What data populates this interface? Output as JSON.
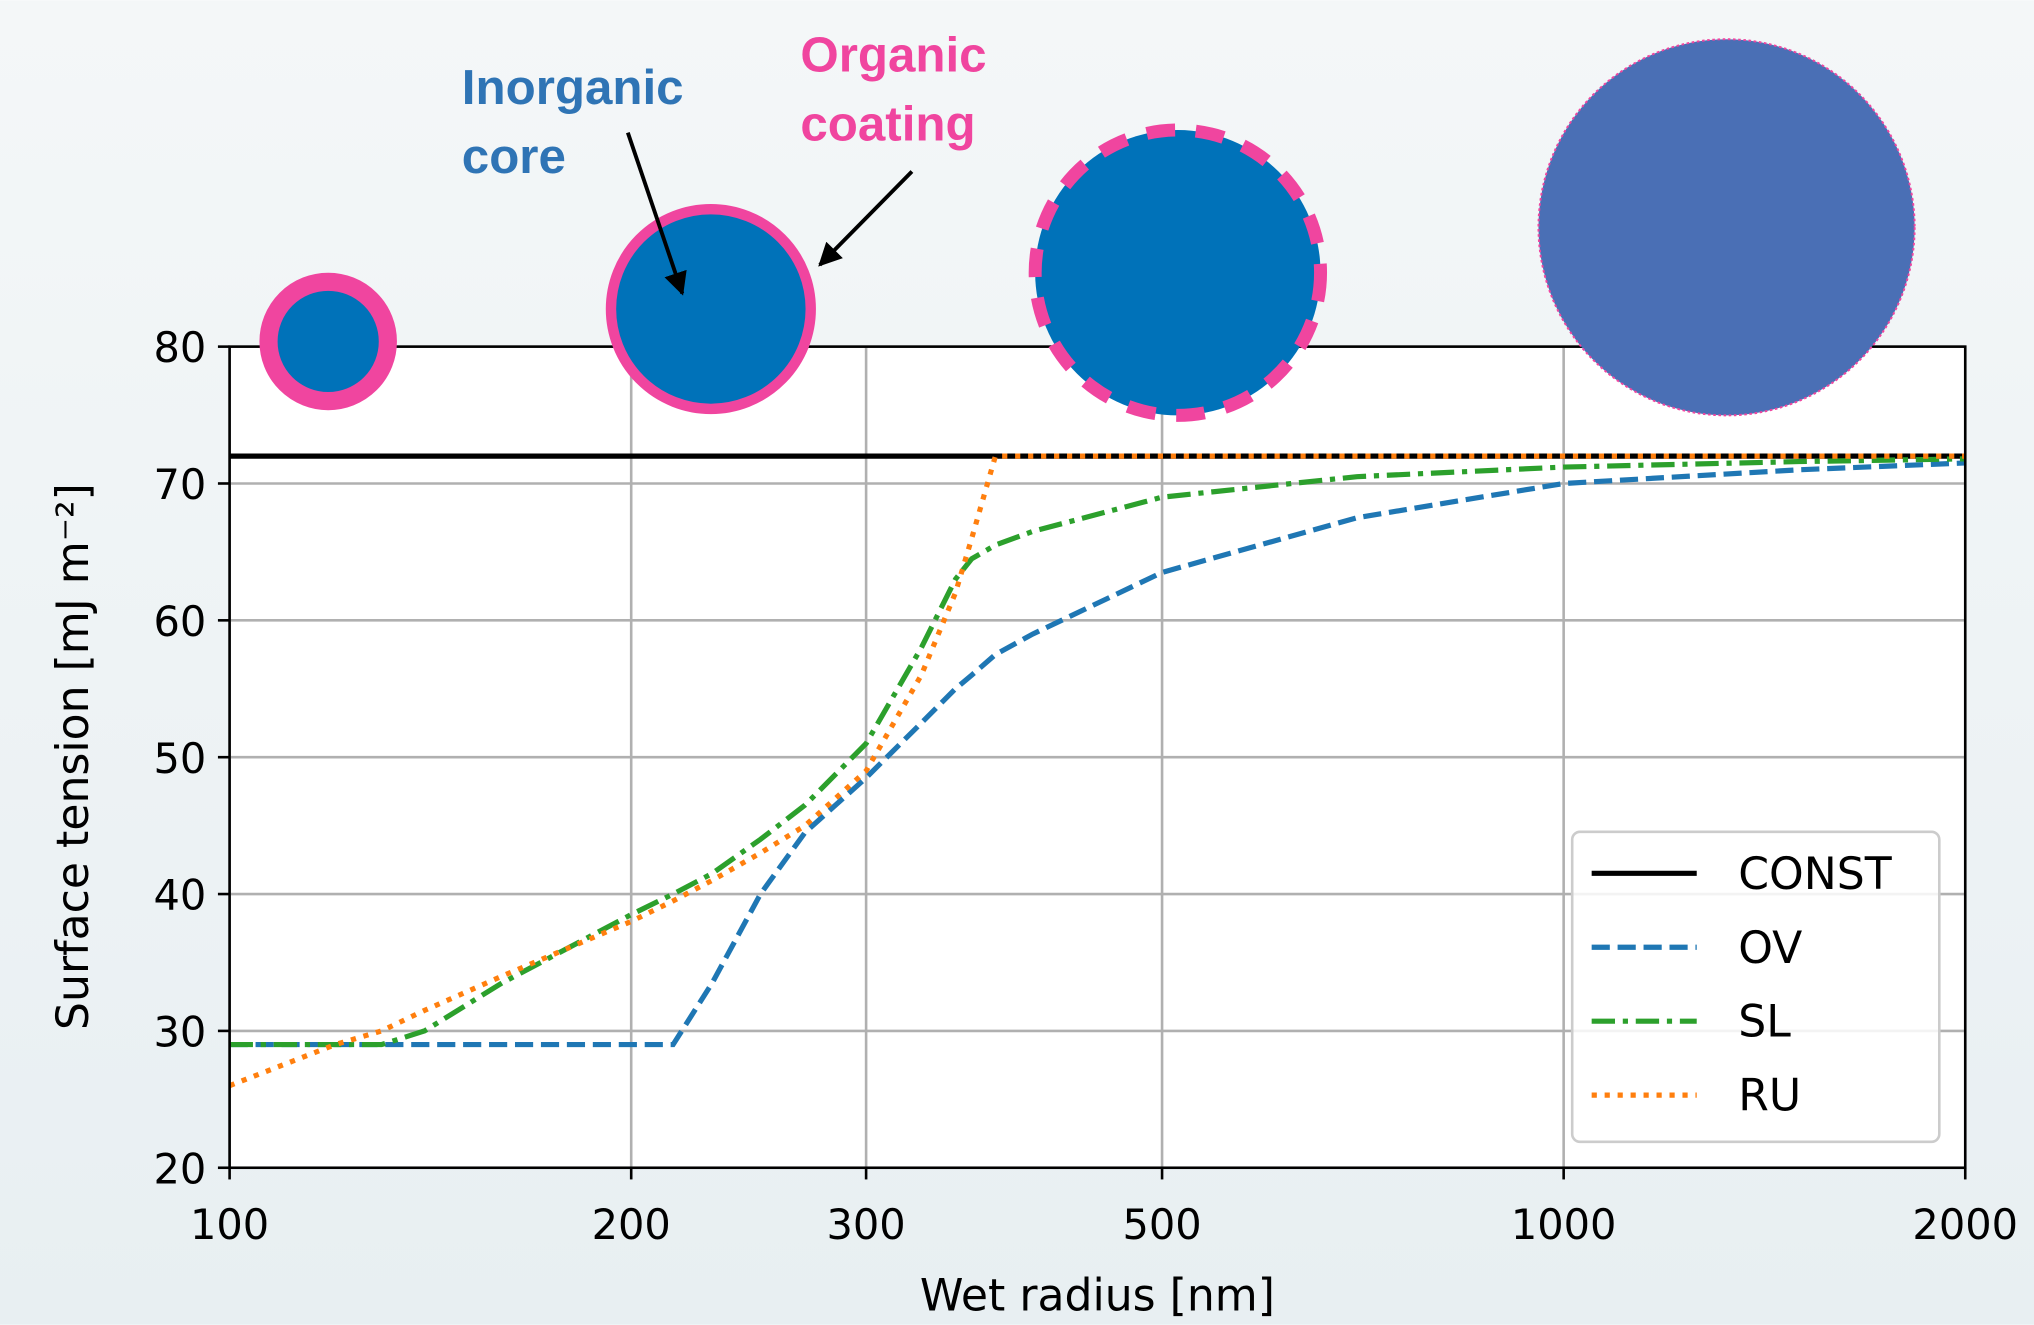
{
  "chart_data": {
    "type": "line",
    "xlabel": "Wet radius [nm]",
    "ylabel": "Surface tension [mJ m⁻²]",
    "xscale": "log",
    "xlim": [
      100,
      2000
    ],
    "ylim": [
      20,
      80
    ],
    "xticks": [
      100,
      200,
      300,
      500,
      1000,
      2000
    ],
    "yticks": [
      20,
      30,
      40,
      50,
      60,
      70,
      80
    ],
    "grid": true,
    "legend": "lower right",
    "annotations": [
      {
        "lines": [
          "Inorganic",
          "core"
        ],
        "color": "#2f74b5"
      },
      {
        "lines": [
          "Organic",
          "coating"
        ],
        "color": "#f0459f"
      }
    ],
    "x": [
      100,
      120,
      130,
      140,
      160,
      200,
      215,
      230,
      250,
      270,
      300,
      330,
      350,
      360,
      375,
      400,
      500,
      700,
      1000,
      1500,
      2000
    ],
    "series": [
      {
        "name": "CONST",
        "color": "#000000",
        "linestyle": "solid",
        "values": [
          72,
          72,
          72,
          72,
          72,
          72,
          72,
          72,
          72,
          72,
          72,
          72,
          72,
          72,
          72,
          72,
          72,
          72,
          72,
          72,
          72
        ]
      },
      {
        "name": "OV",
        "color": "#1f77b4",
        "linestyle": "dashed",
        "values": [
          29,
          29,
          29,
          29,
          29,
          29,
          29,
          33.5,
          40,
          44.5,
          48.5,
          52.5,
          55,
          56,
          57.5,
          59,
          63.5,
          67.5,
          70,
          71,
          71.5
        ]
      },
      {
        "name": "SL",
        "color": "#2ca02c",
        "linestyle": "dashdot",
        "values": [
          29,
          29,
          29,
          30,
          33.5,
          38.5,
          40,
          41.5,
          44,
          46.5,
          51,
          58,
          63,
          64.5,
          65.5,
          66.5,
          69,
          70.5,
          71.2,
          71.6,
          71.8
        ]
      },
      {
        "name": "RU",
        "color": "#ff7f0e",
        "linestyle": "dotted",
        "values": [
          26,
          29,
          30,
          31.5,
          34,
          38,
          39.5,
          41,
          43,
          45,
          49,
          56,
          62,
          66,
          72,
          72,
          72,
          72,
          72,
          72,
          72
        ]
      }
    ]
  }
}
